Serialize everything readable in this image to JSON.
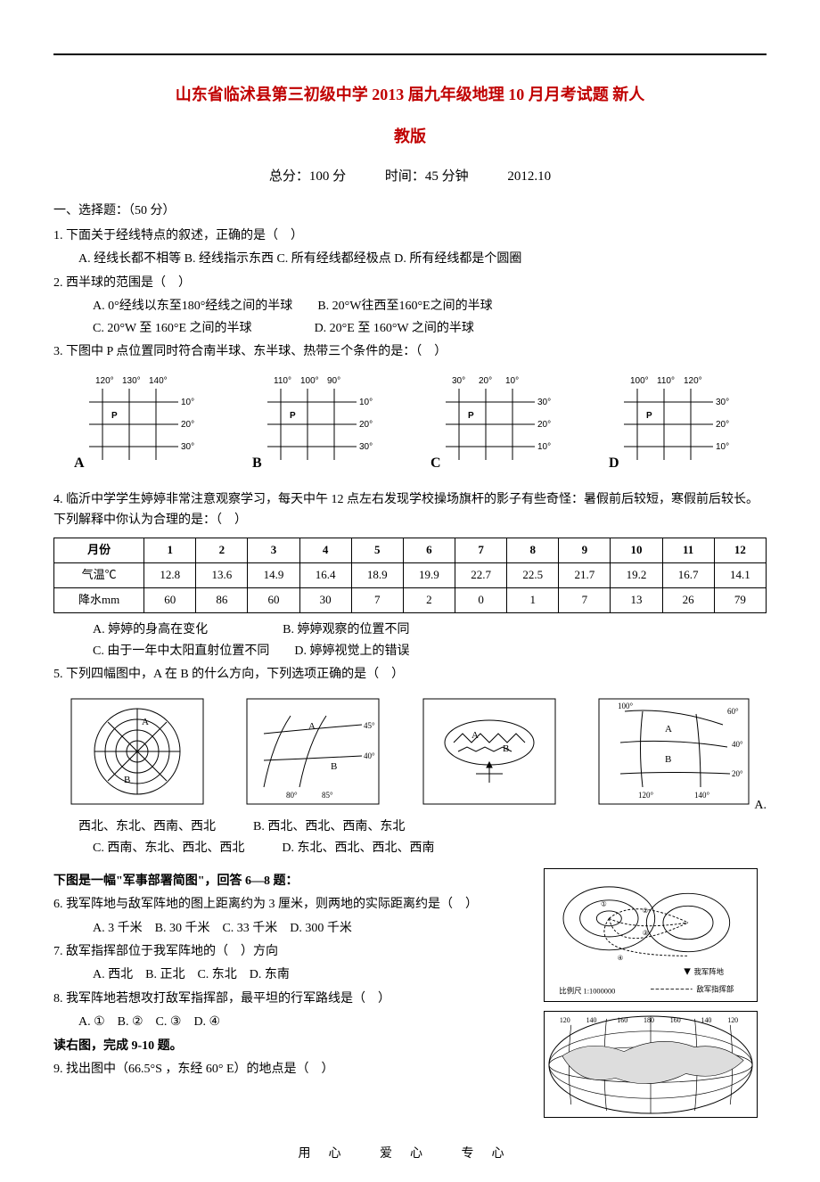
{
  "title_line1": "山东省临沭县第三初级中学 2013 届九年级地理 10 月月考试题 新人",
  "title_line2": "教版",
  "header": {
    "total": "总分：100 分",
    "time": "时间：45 分钟",
    "date": "2012.10"
  },
  "section1": "一、选择题：（50 分）",
  "q1": "1. 下面关于经线特点的叙述，正确的是（　）",
  "q1_opts": "A. 经线长都不相等  B. 经线指示东西 C. 所有经线都经极点  D. 所有经线都是个圆圈",
  "q2": "2. 西半球的范围是（　）",
  "q2_a": "A. 0°经线以东至180°经线之间的半球",
  "q2_b": "B. 20°W往西至160°E之间的半球",
  "q2_c": "C. 20°W 至 160°E 之间的半球",
  "q2_d": "D. 20°E 至 160°W 之间的半球",
  "q3": "3. 下图中 P 点位置同时符合南半球、东半球、热带三个条件的是：（　）",
  "fig3": {
    "panels": [
      {
        "label": "A",
        "top": [
          "120°",
          "130°",
          "140°"
        ],
        "right": [
          "10°",
          "20°",
          "30°"
        ]
      },
      {
        "label": "B",
        "top": [
          "110°",
          "100°",
          "90°"
        ],
        "right": [
          "10°",
          "20°",
          "30°"
        ]
      },
      {
        "label": "C",
        "top": [
          "30°",
          "20°",
          "10°"
        ],
        "right": [
          "30°",
          "20°",
          "10°"
        ]
      },
      {
        "label": "D",
        "top": [
          "100°",
          "110°",
          "120°"
        ],
        "right": [
          "30°",
          "20°",
          "10°"
        ]
      }
    ],
    "p_label": "P",
    "line_color": "#000",
    "bg": "#fff"
  },
  "q4": "4. 临沂中学学生婷婷非常注意观察学习，每天中午 12 点左右发现学校操场旗杆的影子有些奇怪：暑假前后较短，寒假前后较长。下列解释中你认为合理的是：（　）",
  "table": {
    "header": [
      "月份",
      "1",
      "2",
      "3",
      "4",
      "5",
      "6",
      "7",
      "8",
      "9",
      "10",
      "11",
      "12"
    ],
    "rows": [
      [
        "气温℃",
        "12.8",
        "13.6",
        "14.9",
        "16.4",
        "18.9",
        "19.9",
        "22.7",
        "22.5",
        "21.7",
        "19.2",
        "16.7",
        "14.1"
      ],
      [
        "降水mm",
        "60",
        "86",
        "60",
        "30",
        "7",
        "2",
        "0",
        "1",
        "7",
        "13",
        "26",
        "79"
      ]
    ],
    "border_color": "#000"
  },
  "q4_a": "A. 婷婷的身高在变化",
  "q4_b": "B. 婷婷观察的位置不同",
  "q4_c": "C. 由于一年中太阳直射位置不同",
  "q4_d": "D. 婷婷视觉上的错误",
  "q5": "5. 下列四幅图中，A 在 B 的什么方向，下列选项正确的是（　）",
  "maps": {
    "m1": {
      "labels": [
        "A",
        "B"
      ]
    },
    "m2": {
      "labels": [
        "A",
        "B"
      ],
      "lon": [
        "80°",
        "85°"
      ],
      "lat": [
        "45°",
        "40°"
      ]
    },
    "m3": {
      "labels": [
        "A",
        "B"
      ]
    },
    "m4": {
      "labels": [
        "A",
        "B"
      ],
      "lon": [
        "120°",
        "140°"
      ],
      "lat": [
        "60°",
        "40°",
        "20°"
      ],
      "extra": "100°"
    }
  },
  "q5_dangling": "A.",
  "q5_a": "西北、东北、西南、西北",
  "q5_b": "B. 西北、西北、西南、东北",
  "q5_c": "C. 西南、东北、西北、西北",
  "q5_d": "D. 东北、西北、西北、西南",
  "fig68_intro": "下图是一幅\"军事部署简图\"，回答 6—8 题：",
  "q6": "6. 我军阵地与敌军阵地的图上距离约为 3 厘米，则两地的实际距离约是（　）",
  "q6_opts": "A. 3 千米　B. 30 千米　C. 33 千米　D. 300 千米",
  "q7": "7. 敌军指挥部位于我军阵地的（　）方向",
  "q7_opts": "A. 西北　B. 正北　C. 东北　D. 东南",
  "q8": "8. 我军阵地若想攻打敌军指挥部，最平坦的行军路线是（　）",
  "q8_opts": "A. ①　B. ②　C. ③　D. ④",
  "fig68_scale": "比例尺 1:1000000",
  "fig68_legend1": "我军阵地",
  "fig68_legend2": "敌军指挥部",
  "fig910_intro": "读右图，完成 9-10 题。",
  "q9": "9. 找出图中（66.5°S ，东经 60° E）的地点是（　）",
  "globe_lons": [
    "120",
    "140",
    "160",
    "180",
    "160",
    "140",
    "120"
  ],
  "footer": "用心   爱心   专心"
}
